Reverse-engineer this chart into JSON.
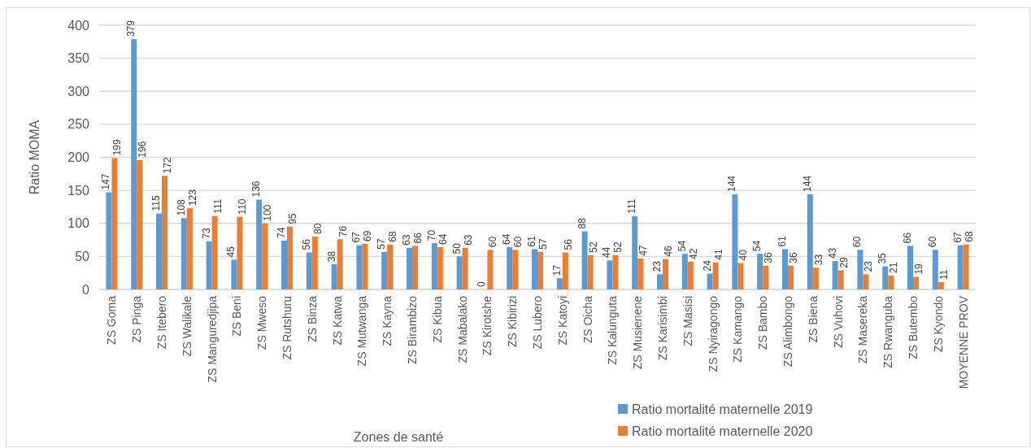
{
  "chart_data": {
    "type": "bar",
    "xlabel": "Zones de santé",
    "ylabel": "Ratio MOMA",
    "categories": [
      "ZS Goma",
      "ZS Pinga",
      "ZS Itebero",
      "ZS Walikale",
      "ZS Manguredjipa",
      "ZS Beni",
      "ZS Mweso",
      "ZS Rutshuru",
      "ZS Binza",
      "ZS Katwa",
      "ZS Mutwanga",
      "ZS Kayna",
      "ZS Birambizo",
      "ZS Kibua",
      "ZS Mabalako",
      "ZS Kirotshe",
      "ZS Kibirizi",
      "ZS Lubero",
      "ZS Katoyi",
      "ZS Oicha",
      "ZS Kalunguta",
      "ZS Musienene",
      "ZS Karisimbi",
      "ZS Masisi",
      "ZS Nyiragongo",
      "ZS Kamango",
      "ZS Bambo",
      "ZS Alimbongo",
      "ZS Biena",
      "ZS Vuhovi",
      "ZS Masereka",
      "ZS Rwanguba",
      "ZS Butembo",
      "ZS Kyondo",
      "MOYENNE PROV"
    ],
    "series": [
      {
        "name": "Ratio mortalité maternelle 2019",
        "color": "#5b9bd5",
        "values": [
          147,
          379,
          115,
          108,
          73,
          45,
          136,
          74,
          56,
          38,
          67,
          57,
          63,
          70,
          50,
          0,
          64,
          61,
          17,
          88,
          44,
          111,
          23,
          54,
          24,
          144,
          54,
          61,
          144,
          43,
          60,
          35,
          66,
          60,
          67
        ]
      },
      {
        "name": "Ratio mortalité maternelle 2020",
        "color": "#ed7d31",
        "values": [
          199,
          196,
          172,
          123,
          111,
          110,
          100,
          95,
          80,
          76,
          69,
          68,
          66,
          64,
          63,
          60,
          60,
          57,
          56,
          52,
          52,
          47,
          46,
          42,
          41,
          40,
          36,
          36,
          33,
          29,
          23,
          21,
          19,
          11,
          68
        ]
      }
    ],
    "ylim": [
      0,
      400
    ],
    "yticks": [
      0,
      50,
      100,
      150,
      200,
      250,
      300,
      350,
      400
    ],
    "grid": "y",
    "legend": "bottom",
    "data_labels": true
  }
}
